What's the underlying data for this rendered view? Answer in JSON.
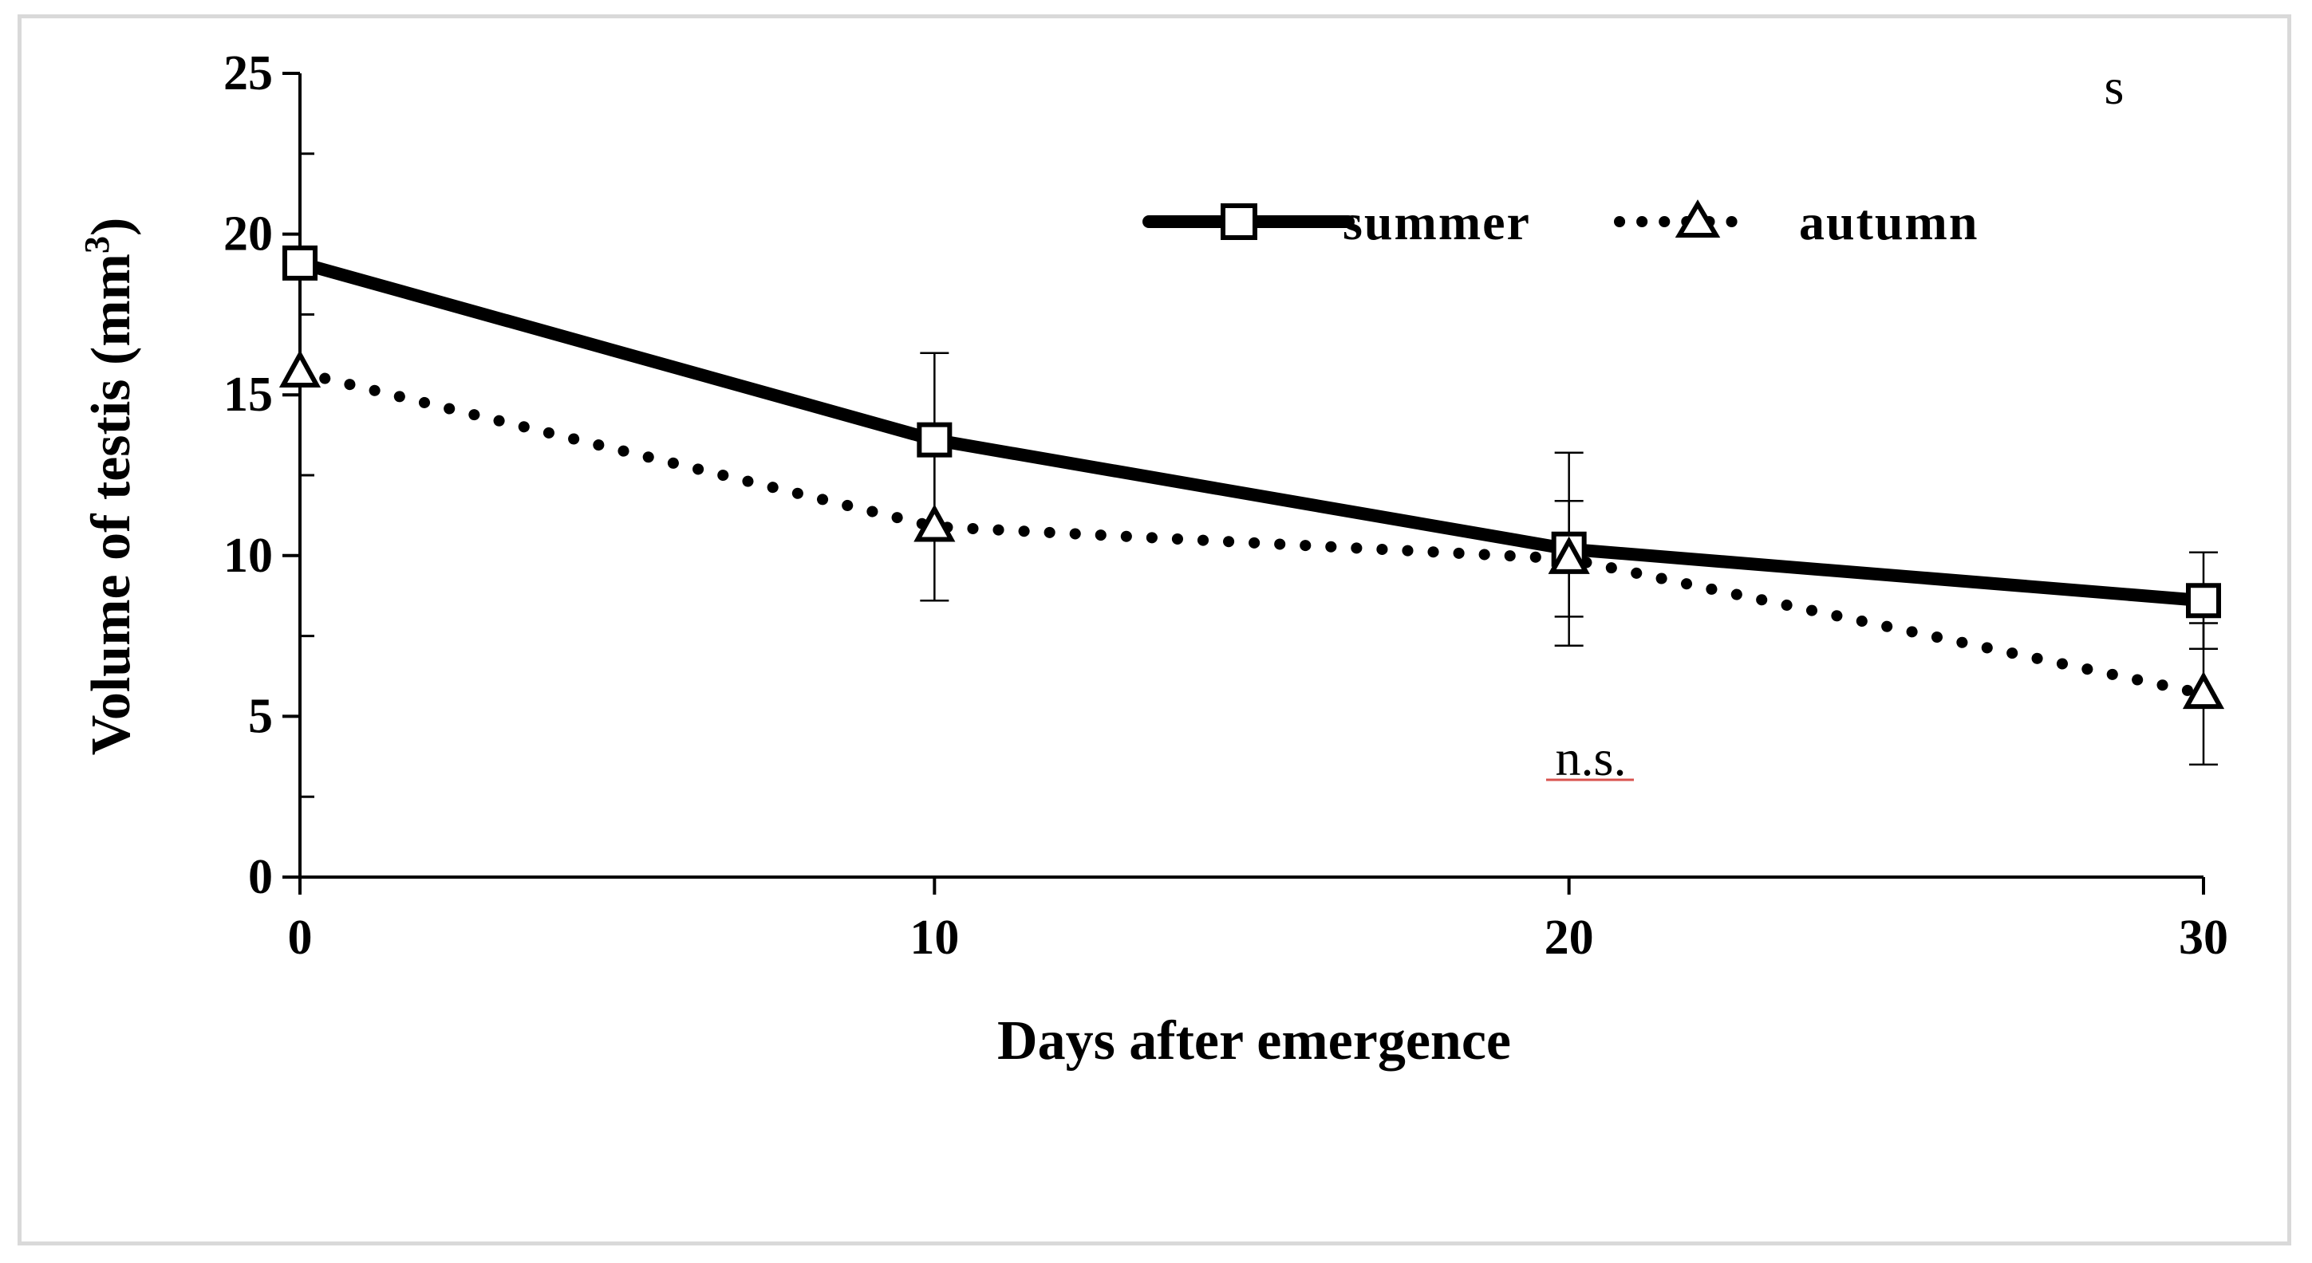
{
  "chart_data": {
    "type": "line",
    "title": "",
    "xlabel": "Days after emergence",
    "ylabel": "Volume of testis (mm",
    "ylabel_superscript": "3",
    "ylabel_close": ")",
    "x": [
      0,
      10,
      20,
      30
    ],
    "xlim": [
      0,
      30
    ],
    "ylim": [
      0,
      25
    ],
    "x_ticks": [
      "0",
      "10",
      "20",
      "30"
    ],
    "y_ticks": [
      "0",
      "5",
      "10",
      "15",
      "20",
      "25"
    ],
    "grid": false,
    "legend_position": "top-right",
    "series": [
      {
        "name": "summer",
        "values": [
          19.1,
          13.6,
          10.2,
          8.6
        ],
        "error": [
          0,
          2.7,
          3.0,
          1.5
        ],
        "line_style": "solid",
        "marker": "square",
        "color": "#000000"
      },
      {
        "name": "autumn",
        "values": [
          15.7,
          10.9,
          9.9,
          5.7
        ],
        "error": [
          0,
          2.3,
          1.8,
          2.2
        ],
        "line_style": "dotted",
        "marker": "triangle",
        "color": "#000000"
      }
    ],
    "annotations": [
      {
        "text": "s",
        "x": 29,
        "y": 24.5
      },
      {
        "text": "n.s.",
        "x": 20.8,
        "y": 3.3
      }
    ]
  }
}
